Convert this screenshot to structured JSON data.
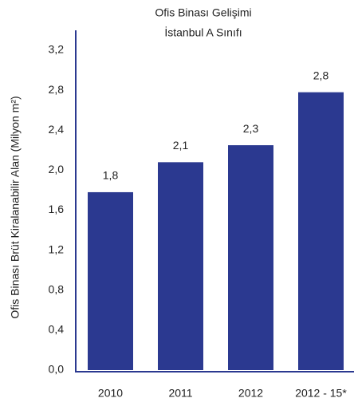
{
  "chart_data": {
    "type": "bar",
    "title": "Ofis Binası Gelişimi",
    "subtitle": "İstanbul A Sınıfı",
    "y_label": "Ofis Binası Brüt Kiralanabilir Alan (Milyon m²)",
    "categories": [
      "2010",
      "2011",
      "2012",
      "2012 - 15*"
    ],
    "values": [
      1.78,
      2.08,
      2.25,
      2.78
    ],
    "value_labels": [
      "1,8",
      "2,1",
      "2,3",
      "2,8"
    ],
    "color": "#2b3990",
    "ylim": [
      0,
      3.2
    ],
    "yticks": [
      {
        "value": 0,
        "label": "0,0"
      },
      {
        "value": 0.4,
        "label": "0,4"
      },
      {
        "value": 0.8,
        "label": "0,8"
      },
      {
        "value": 1.2,
        "label": "1,2"
      },
      {
        "value": 1.6,
        "label": "1,6"
      },
      {
        "value": 2.0,
        "label": "2,0"
      },
      {
        "value": 2.4,
        "label": "2,4"
      },
      {
        "value": 2.8,
        "label": "2,8"
      },
      {
        "value": 3.2,
        "label": "3,2"
      }
    ],
    "grid": false
  }
}
